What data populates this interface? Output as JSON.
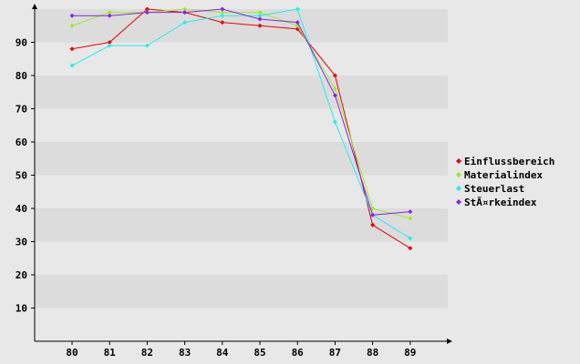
{
  "chart_data": {
    "type": "line",
    "x": [
      80,
      81,
      82,
      83,
      84,
      85,
      86,
      87,
      88,
      89
    ],
    "ylim": [
      0,
      100
    ],
    "yticks": [
      10,
      20,
      30,
      40,
      50,
      60,
      70,
      80,
      90
    ],
    "grid": "horizontal bands",
    "legend_position": "right",
    "series": [
      {
        "name": "Einflussbereich",
        "color": "#ee0000",
        "values": [
          88,
          90,
          100,
          99,
          96,
          95,
          94,
          80,
          35,
          28
        ]
      },
      {
        "name": "Materialindex",
        "color": "#99ee22",
        "values": [
          95,
          99,
          99,
          100,
          99,
          99,
          95,
          76,
          40,
          37
        ]
      },
      {
        "name": "Steuerlast",
        "color": "#22eeee",
        "values": [
          83,
          89,
          89,
          96,
          98,
          98,
          100,
          66,
          38,
          31
        ]
      },
      {
        "name": "StÃ¤rkeindex",
        "color": "#8822ee",
        "values": [
          98,
          98,
          99,
          99,
          100,
          97,
          96,
          74,
          38,
          39
        ]
      }
    ]
  }
}
